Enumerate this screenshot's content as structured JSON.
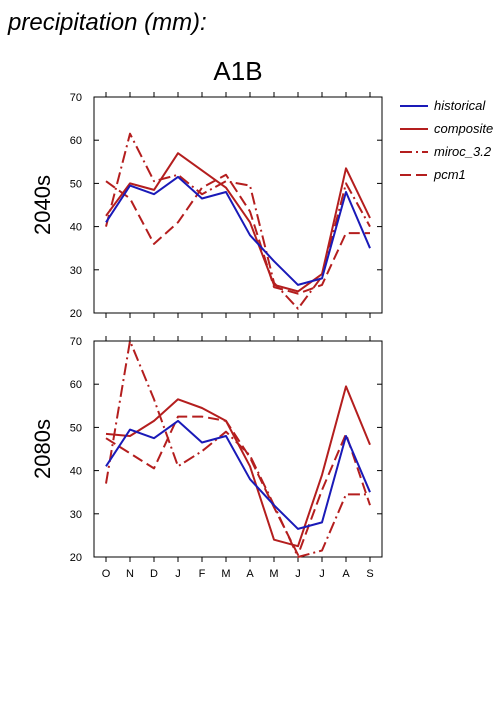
{
  "header": {
    "title": "precipitation (mm):"
  },
  "chart_data": {
    "type": "line",
    "title": "A1B",
    "categories": [
      "O",
      "N",
      "D",
      "J",
      "F",
      "M",
      "A",
      "M",
      "J",
      "J",
      "A",
      "S"
    ],
    "ylim": [
      20,
      70
    ],
    "yticks": [
      20,
      30,
      40,
      50,
      60,
      70
    ],
    "legend": {
      "placement": "top-right",
      "entries": [
        "historical",
        "composite",
        "miroc_3.2",
        "pcm1"
      ]
    },
    "colors": {
      "historical": "#1a1ab8",
      "composite": "#b41e1e",
      "miroc_3.2": "#b41e1e",
      "pcm1": "#b41e1e"
    },
    "panels": [
      {
        "label": "2040s",
        "series": [
          {
            "name": "historical",
            "style": "solid",
            "values": [
              41,
              49.5,
              47.5,
              51.5,
              46.5,
              48,
              38,
              32,
              26.5,
              28,
              48,
              35
            ]
          },
          {
            "name": "composite",
            "style": "solid",
            "values": [
              42.5,
              50,
              48.5,
              57,
              53,
              49,
              41,
              26.5,
              25,
              29,
              53.5,
              42
            ]
          },
          {
            "name": "miroc_3.2",
            "style": "dashdot",
            "values": [
              40,
              61.5,
              50.5,
              52,
              47.5,
              50.5,
              49.5,
              27,
              21,
              28.5,
              50,
              40
            ]
          },
          {
            "name": "pcm1",
            "style": "dash",
            "values": [
              50.5,
              46.5,
              36,
              41,
              49,
              52,
              43.5,
              26,
              24.5,
              26.5,
              38.5,
              38.5
            ]
          }
        ]
      },
      {
        "label": "2080s",
        "series": [
          {
            "name": "historical",
            "style": "solid",
            "values": [
              41,
              49.5,
              47.5,
              51.5,
              46.5,
              48,
              38,
              32,
              26.5,
              28,
              48,
              35
            ]
          },
          {
            "name": "composite",
            "style": "solid",
            "values": [
              48.5,
              48,
              51.5,
              56.5,
              54.5,
              51.5,
              41,
              24,
              22.5,
              39,
              59.5,
              46
            ]
          },
          {
            "name": "miroc_3.2",
            "style": "dashdot",
            "values": [
              37,
              70,
              56.5,
              41,
              44.5,
              49,
              43.5,
              32,
              20,
              21.5,
              34.5,
              34.5
            ]
          },
          {
            "name": "pcm1",
            "style": "dash",
            "values": [
              47.5,
              44,
              40.5,
              52.5,
              52.5,
              51.5,
              43,
              31.5,
              20.5,
              35.5,
              48.5,
              32
            ]
          }
        ]
      }
    ]
  }
}
